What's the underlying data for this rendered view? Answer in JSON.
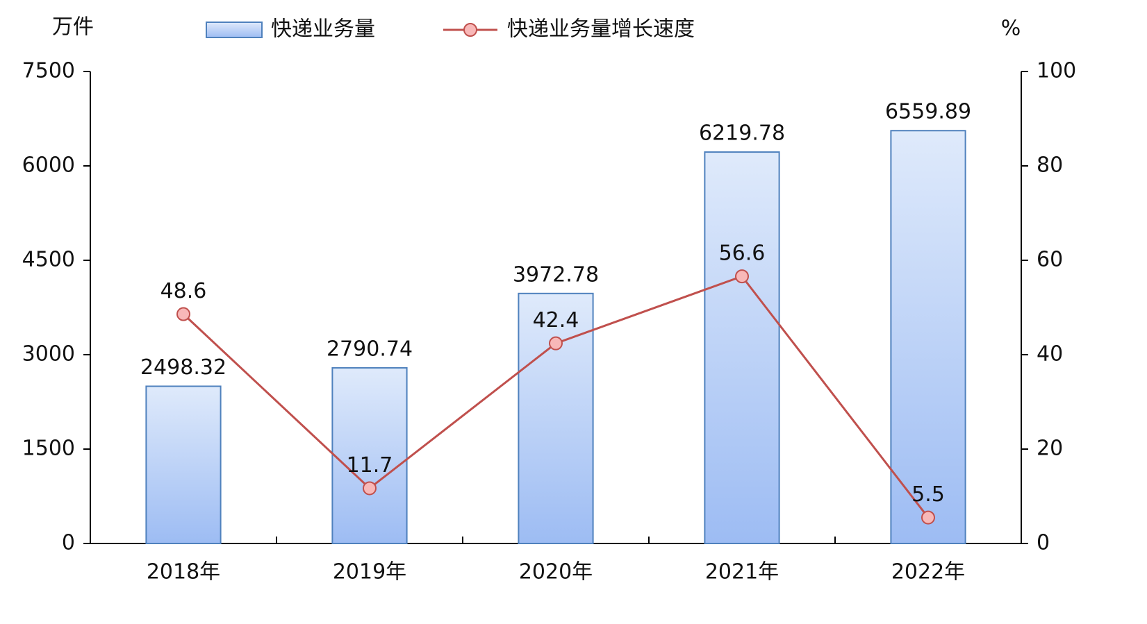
{
  "chart_data": {
    "type": "bar",
    "y_label": "万件",
    "y2_label": "%",
    "categories": [
      "2018年",
      "2019年",
      "2020年",
      "2021年",
      "2022年"
    ],
    "series": [
      {
        "name": "快递业务量",
        "color": "#4f81bd",
        "values": [
          2498.32,
          2790.74,
          3972.78,
          6219.78,
          6559.89
        ]
      },
      {
        "name": "快递业务量增长速度",
        "type": "line",
        "axis": "y2",
        "color": "#c0504d",
        "values": [
          48.6,
          11.7,
          42.4,
          56.6,
          5.5
        ]
      }
    ],
    "ylim": [
      0,
      7500
    ],
    "yticks": [
      0,
      1500,
      3000,
      4500,
      6000,
      7500
    ],
    "y2lim": [
      0,
      100
    ],
    "y2ticks": [
      0,
      20,
      40,
      60,
      80,
      100
    ]
  }
}
